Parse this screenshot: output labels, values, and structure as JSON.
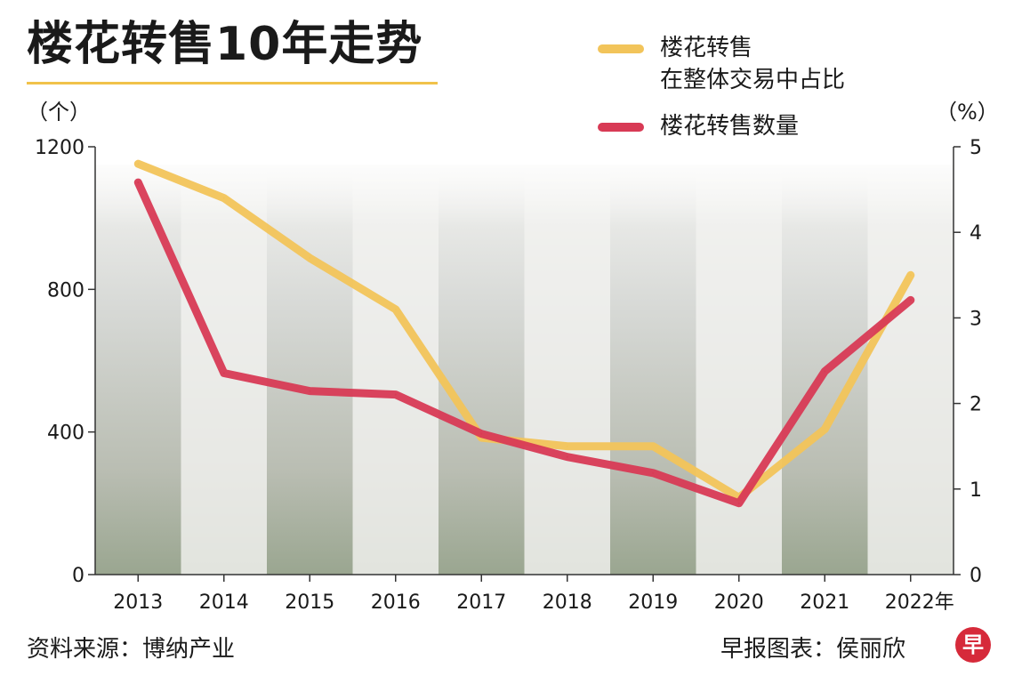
{
  "title": "楼花转售10年走势",
  "legend": [
    {
      "line1": "楼花转售",
      "line2": "在整体交易中占比",
      "color": "#f2c45a"
    },
    {
      "line1": "楼花转售数量",
      "line2": "",
      "color": "#d83a55"
    }
  ],
  "units": {
    "left": "（个）",
    "right": "（%）"
  },
  "footer": {
    "source": "资料来源：博纳产业",
    "credit": "早报图表：侯丽欣",
    "logo": "早"
  },
  "chart_data": {
    "type": "line",
    "categories": [
      "2013",
      "2014",
      "2015",
      "2016",
      "2017",
      "2018",
      "2019",
      "2020",
      "2021",
      "2022年"
    ],
    "left_axis": {
      "ticks": [
        0,
        400,
        800,
        1200
      ],
      "range": [
        0,
        1200
      ]
    },
    "right_axis": {
      "ticks": [
        0,
        1,
        2,
        3,
        4,
        5
      ],
      "range": [
        0,
        5
      ]
    },
    "series": [
      {
        "name": "楼花转售在整体交易中占比",
        "axis": "right",
        "color": "#f2c45a",
        "values": [
          4.8,
          4.4,
          3.7,
          3.1,
          1.6,
          1.5,
          1.5,
          0.9,
          1.7,
          3.5
        ]
      },
      {
        "name": "楼花转售数量",
        "axis": "left",
        "color": "#d83a55",
        "values": [
          1100,
          565,
          515,
          505,
          395,
          330,
          285,
          200,
          570,
          770
        ]
      }
    ]
  }
}
